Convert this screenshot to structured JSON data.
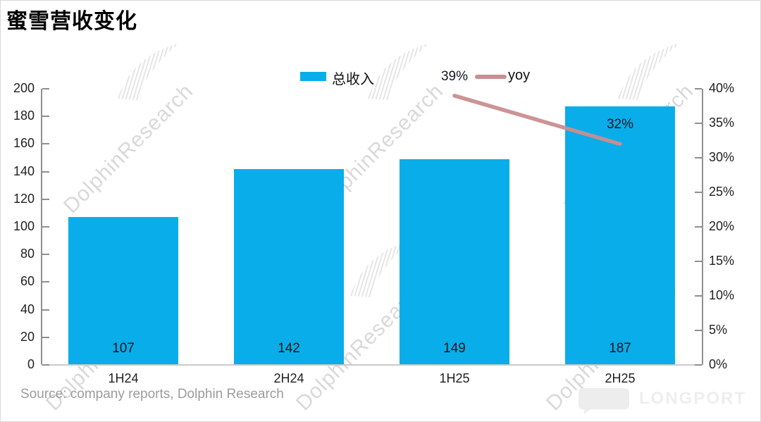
{
  "title": "蜜雪营收变化",
  "source": "Source: company reports, Dolphin Research",
  "watermark": {
    "text": "DolphinResearch"
  },
  "brand": {
    "logo_text": "LONGPORT"
  },
  "chart_data": {
    "type": "bar",
    "title": "蜜雪营收变化",
    "categories": [
      "1H24",
      "2H24",
      "1H25",
      "2H25"
    ],
    "series": [
      {
        "name": "总收入",
        "type": "bar",
        "axis": "left",
        "color": "#09ade9",
        "values": [
          107,
          142,
          149,
          187
        ],
        "value_labels": [
          "107",
          "142",
          "149",
          "187"
        ]
      },
      {
        "name": "yoy",
        "type": "line",
        "axis": "right",
        "color": "#c98e8f",
        "values": [
          null,
          null,
          39,
          32
        ],
        "point_labels": [
          "",
          "",
          "39%",
          "32%"
        ]
      }
    ],
    "left_axis": {
      "min": 0,
      "max": 200,
      "step": 20,
      "ticks": [
        "200",
        "180",
        "160",
        "140",
        "120",
        "100",
        "80",
        "60",
        "40",
        "20",
        "0"
      ]
    },
    "right_axis": {
      "min": 0,
      "max": 40,
      "step": 5,
      "ticks": [
        "40%",
        "35%",
        "30%",
        "25%",
        "20%",
        "15%",
        "10%",
        "5%",
        "0%"
      ]
    },
    "legend": [
      {
        "label": "总收入",
        "marker": "bar"
      },
      {
        "label": "yoy",
        "marker": "line"
      }
    ],
    "grid": false,
    "legend_position": "top-center"
  }
}
